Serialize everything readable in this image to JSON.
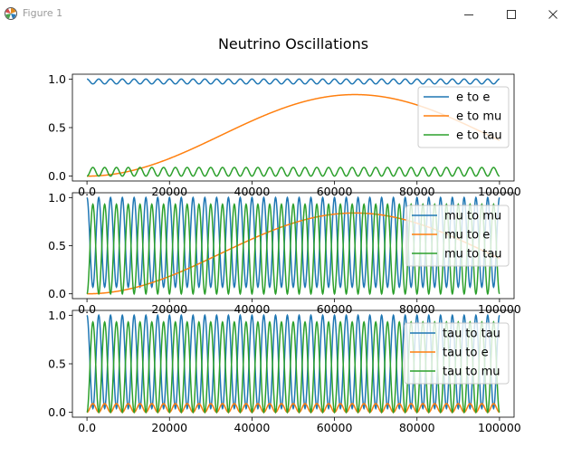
{
  "window": {
    "title": "Figure 1",
    "icon": "matplotlib-icon",
    "controls": [
      "minimize-icon",
      "maximize-icon",
      "close-icon"
    ]
  },
  "colors": {
    "blue": "#1f77b4",
    "orange": "#ff7f0e",
    "green": "#2ca02c",
    "axis": "#000000",
    "legend_border": "#cccccc"
  },
  "chart_data": [
    {
      "type": "line",
      "title": "Neutrino Oscillations",
      "xlim": [
        0,
        100000
      ],
      "ylim": [
        -0.05,
        1.05
      ],
      "xticks": [
        0,
        20000,
        40000,
        60000,
        80000,
        100000
      ],
      "yticks": [
        0.0,
        0.5,
        1.0
      ],
      "legend_position": "right",
      "series": [
        {
          "name": "e to e",
          "color": "#1f77b4",
          "baseline": 1.0,
          "slow_amplitude": 0.0,
          "fast_amplitude": 0.05,
          "fast_cycles": 35,
          "fast_sign": -1
        },
        {
          "name": "e to mu",
          "color": "#ff7f0e",
          "baseline": 0.0,
          "slow_amplitude": 0.84,
          "fast_amplitude": 0.0,
          "fast_cycles": 0
        },
        {
          "name": "e to tau",
          "color": "#2ca02c",
          "baseline": 0.0,
          "slow_amplitude": 0.0,
          "fast_amplitude": 0.09,
          "fast_cycles": 35,
          "fast_sign": 1
        }
      ]
    },
    {
      "type": "line",
      "title": "",
      "xlim": [
        0,
        100000
      ],
      "ylim": [
        -0.05,
        1.05
      ],
      "xticks": [
        0,
        20000,
        40000,
        60000,
        80000,
        100000
      ],
      "yticks": [
        0.0,
        0.5,
        1.0
      ],
      "legend_position": "right",
      "series": [
        {
          "name": "mu to mu",
          "color": "#1f77b4",
          "baseline": 1.0,
          "slow_amplitude": -0.84,
          "fast_amplitude": 0.93,
          "fast_cycles": 35,
          "fast_sign": -1
        },
        {
          "name": "mu to e",
          "color": "#ff7f0e",
          "baseline": 0.0,
          "slow_amplitude": 0.84,
          "fast_amplitude": 0.0,
          "fast_cycles": 0
        },
        {
          "name": "mu to tau",
          "color": "#2ca02c",
          "baseline": 0.0,
          "slow_amplitude": 0.0,
          "fast_amplitude": 0.93,
          "fast_cycles": 35,
          "fast_sign": 1
        }
      ]
    },
    {
      "type": "line",
      "title": "",
      "xlim": [
        0,
        100000
      ],
      "ylim": [
        -0.05,
        1.05
      ],
      "xticks": [
        0,
        20000,
        40000,
        60000,
        80000,
        100000
      ],
      "yticks": [
        0.0,
        0.5,
        1.0
      ],
      "legend_position": "right",
      "series": [
        {
          "name": "tau to tau",
          "color": "#1f77b4",
          "baseline": 1.0,
          "slow_amplitude": 0.0,
          "fast_amplitude": 0.96,
          "fast_cycles": 35,
          "fast_sign": -1
        },
        {
          "name": "tau to e",
          "color": "#ff7f0e",
          "baseline": 0.0,
          "slow_amplitude": 0.0,
          "fast_amplitude": 0.09,
          "fast_cycles": 35,
          "fast_sign": 1
        },
        {
          "name": "tau to mu",
          "color": "#2ca02c",
          "baseline": 0.0,
          "slow_amplitude": 0.0,
          "fast_amplitude": 0.93,
          "fast_cycles": 35,
          "fast_sign": 1
        }
      ]
    }
  ]
}
